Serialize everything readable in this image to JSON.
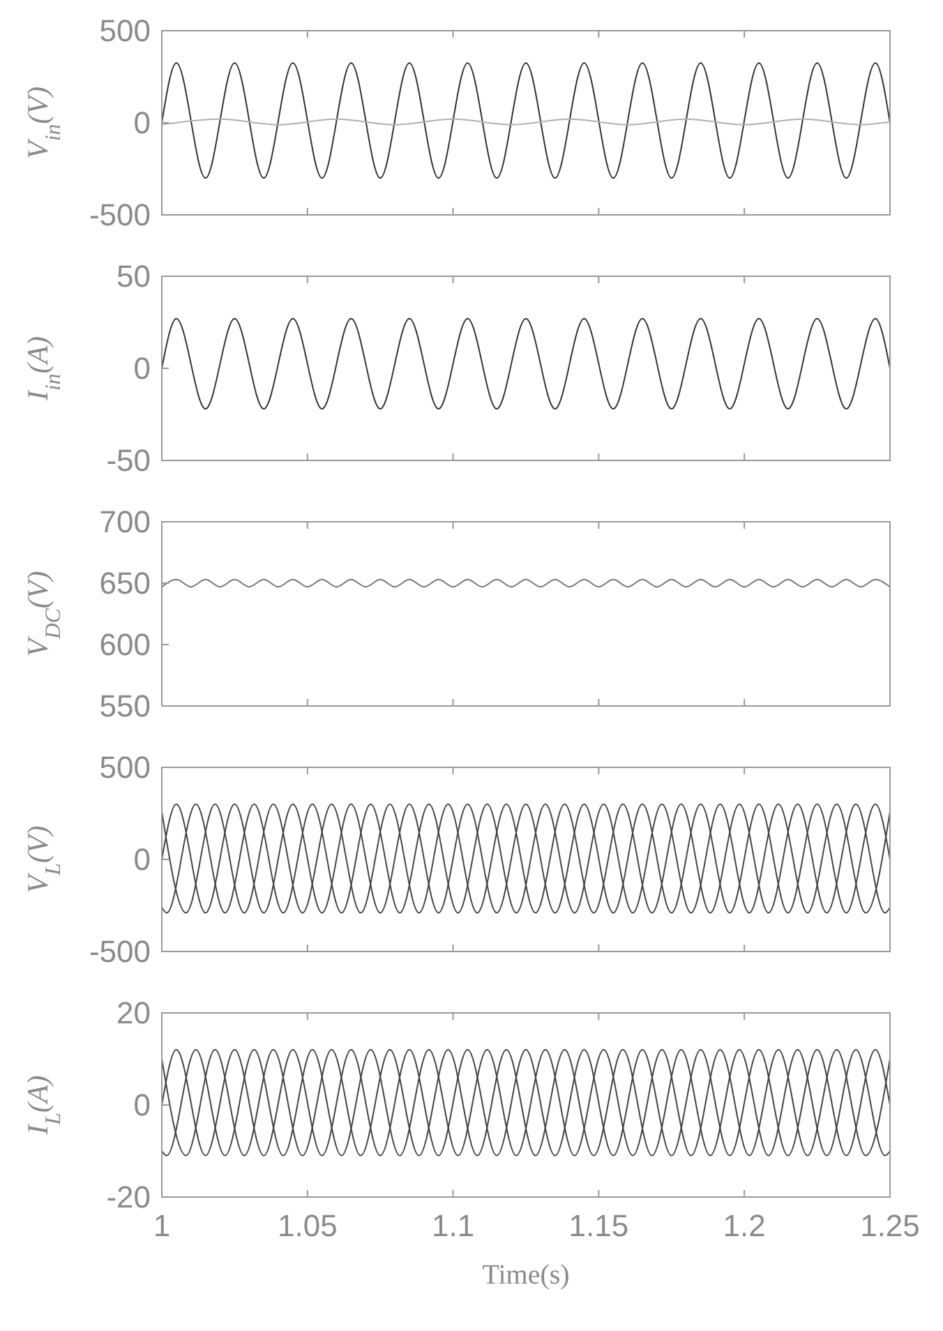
{
  "chart_data": [
    {
      "type": "line",
      "ylabel": "V$_{in}$(V)",
      "xlim": [
        1,
        1.25
      ],
      "xticks": [
        1,
        1.05,
        1.1,
        1.15,
        1.2,
        1.25
      ],
      "ylim": [
        -500,
        500
      ],
      "yticks": [
        -500,
        0,
        500
      ],
      "tick_labels": "y",
      "series": [
        {
          "color": "#333333",
          "x": [
            1,
            1.005,
            1.015,
            1.025,
            1.035,
            1.045,
            1.055,
            1.065,
            1.075,
            1.085,
            1.095,
            1.105,
            1.115,
            1.125,
            1.135,
            1.145,
            1.155,
            1.165,
            1.175,
            1.185,
            1.195,
            1.205,
            1.215,
            1.225,
            1.235,
            1.245,
            1.25
          ],
          "values": [
            0,
            325,
            -300,
            325,
            -300,
            325,
            -300,
            325,
            -300,
            325,
            -300,
            325,
            -300,
            325,
            -300,
            325,
            -300,
            325,
            -300,
            325,
            -300,
            325,
            -300,
            325,
            -300,
            325,
            0
          ]
        },
        {
          "color": "#b0b0b0",
          "x": [
            1,
            1.02,
            1.04,
            1.06,
            1.08,
            1.1,
            1.12,
            1.14,
            1.16,
            1.18,
            1.2,
            1.22,
            1.24,
            1.25
          ],
          "values": [
            -10,
            20,
            -10,
            20,
            -10,
            20,
            -10,
            20,
            -10,
            20,
            -10,
            20,
            -10,
            5
          ]
        }
      ]
    },
    {
      "type": "line",
      "ylabel": "I$_{in}$(A)",
      "xlim": [
        1,
        1.25
      ],
      "xticks": [
        1,
        1.05,
        1.1,
        1.15,
        1.2,
        1.25
      ],
      "ylim": [
        -50,
        50
      ],
      "yticks": [
        -50,
        0,
        50
      ],
      "tick_labels": "y",
      "series": [
        {
          "color": "#333333",
          "x": [
            1,
            1.005,
            1.015,
            1.025,
            1.035,
            1.045,
            1.055,
            1.065,
            1.075,
            1.085,
            1.095,
            1.105,
            1.115,
            1.125,
            1.135,
            1.145,
            1.155,
            1.165,
            1.175,
            1.185,
            1.195,
            1.205,
            1.215,
            1.225,
            1.235,
            1.245,
            1.25
          ],
          "values": [
            0,
            27,
            -22,
            27,
            -22,
            27,
            -22,
            27,
            -22,
            27,
            -22,
            27,
            -22,
            27,
            -22,
            27,
            -22,
            27,
            -22,
            27,
            -22,
            27,
            -22,
            27,
            -22,
            27,
            0
          ]
        }
      ]
    },
    {
      "type": "line",
      "ylabel": "V$_{DC}$(V)",
      "xlim": [
        1,
        1.25
      ],
      "xticks": [
        1,
        1.05,
        1.1,
        1.15,
        1.2,
        1.25
      ],
      "ylim": [
        550,
        700
      ],
      "yticks": [
        550,
        600,
        650,
        700
      ],
      "tick_labels": "y",
      "series": [
        {
          "color": "#777777",
          "x": [
            1,
            1.005,
            1.01,
            1.015,
            1.02,
            1.025,
            1.03,
            1.035,
            1.04,
            1.045,
            1.05,
            1.055,
            1.06,
            1.065,
            1.07,
            1.075,
            1.08,
            1.085,
            1.09,
            1.095,
            1.1,
            1.105,
            1.11,
            1.115,
            1.12,
            1.125,
            1.13,
            1.135,
            1.14,
            1.145,
            1.15,
            1.155,
            1.16,
            1.165,
            1.17,
            1.175,
            1.18,
            1.185,
            1.19,
            1.195,
            1.2,
            1.205,
            1.21,
            1.215,
            1.22,
            1.225,
            1.23,
            1.235,
            1.24,
            1.245,
            1.25
          ],
          "values": [
            647,
            653,
            647,
            653,
            647,
            653,
            647,
            653,
            647,
            653,
            647,
            653,
            647,
            653,
            647,
            653,
            647,
            653,
            647,
            653,
            647,
            653,
            647,
            653,
            647,
            653,
            647,
            653,
            647,
            653,
            647,
            653,
            647,
            653,
            647,
            653,
            647,
            653,
            647,
            653,
            647,
            653,
            647,
            653,
            647,
            653,
            647,
            653,
            647,
            653,
            647
          ]
        }
      ]
    },
    {
      "type": "line",
      "ylabel": "V$_{L}$(V)",
      "xlim": [
        1,
        1.25
      ],
      "xticks": [
        1,
        1.05,
        1.1,
        1.15,
        1.2,
        1.25
      ],
      "ylim": [
        -500,
        500
      ],
      "yticks": [
        -500,
        0,
        500
      ],
      "tick_labels": "y",
      "series": [
        {
          "color": "#444444",
          "x": [
            1,
            1.005,
            1.015,
            1.025,
            1.035,
            1.045,
            1.055,
            1.065,
            1.075,
            1.085,
            1.095,
            1.105,
            1.115,
            1.125,
            1.135,
            1.145,
            1.155,
            1.165,
            1.175,
            1.185,
            1.195,
            1.205,
            1.215,
            1.225,
            1.235,
            1.245,
            1.25
          ],
          "values": [
            0,
            300,
            -290,
            300,
            -290,
            300,
            -290,
            300,
            -290,
            300,
            -290,
            300,
            -290,
            300,
            -290,
            300,
            -290,
            300,
            -290,
            300,
            -290,
            300,
            -290,
            300,
            -290,
            300,
            0
          ]
        },
        {
          "color": "#444444",
          "x": [
            1,
            1.0017,
            1.0117,
            1.0217,
            1.0317,
            1.0417,
            1.0517,
            1.0617,
            1.0717,
            1.0817,
            1.0917,
            1.1017,
            1.1117,
            1.1217,
            1.1317,
            1.1417,
            1.1517,
            1.1617,
            1.1717,
            1.1817,
            1.1917,
            1.2017,
            1.2117,
            1.2217,
            1.2317,
            1.2417,
            1.25
          ],
          "values": [
            -260,
            -290,
            300,
            -290,
            300,
            -290,
            300,
            -290,
            300,
            -290,
            300,
            -290,
            300,
            -290,
            300,
            -290,
            300,
            -290,
            300,
            -290,
            300,
            -290,
            300,
            -290,
            300,
            -290,
            260
          ]
        },
        {
          "color": "#444444",
          "x": [
            1,
            1.0083,
            1.0183,
            1.0283,
            1.0383,
            1.0483,
            1.0583,
            1.0683,
            1.0783,
            1.0883,
            1.0983,
            1.1083,
            1.1183,
            1.1283,
            1.1383,
            1.1483,
            1.1583,
            1.1683,
            1.1783,
            1.1883,
            1.1983,
            1.2083,
            1.2183,
            1.2283,
            1.2383,
            1.2483,
            1.25
          ],
          "values": [
            260,
            -290,
            300,
            -290,
            300,
            -290,
            300,
            -290,
            300,
            -290,
            300,
            -290,
            300,
            -290,
            300,
            -290,
            300,
            -290,
            300,
            -290,
            300,
            -290,
            300,
            -290,
            300,
            -290,
            -260
          ]
        }
      ]
    },
    {
      "type": "line",
      "ylabel": "I$_{L}$(A)",
      "xlabel": "Time(s)",
      "xlim": [
        1,
        1.25
      ],
      "xticks": [
        1,
        1.05,
        1.1,
        1.15,
        1.2,
        1.25
      ],
      "ylim": [
        -20,
        20
      ],
      "yticks": [
        -20,
        0,
        20
      ],
      "series": [
        {
          "color": "#444444",
          "x": [
            1,
            1.005,
            1.015,
            1.025,
            1.035,
            1.045,
            1.055,
            1.065,
            1.075,
            1.085,
            1.095,
            1.105,
            1.115,
            1.125,
            1.135,
            1.145,
            1.155,
            1.165,
            1.175,
            1.185,
            1.195,
            1.205,
            1.215,
            1.225,
            1.235,
            1.245,
            1.25
          ],
          "values": [
            0,
            12,
            -11,
            12,
            -11,
            12,
            -11,
            12,
            -11,
            12,
            -11,
            12,
            -11,
            12,
            -11,
            12,
            -11,
            12,
            -11,
            12,
            -11,
            12,
            -11,
            12,
            -11,
            12,
            0
          ]
        },
        {
          "color": "#444444",
          "x": [
            1,
            1.0017,
            1.0117,
            1.0217,
            1.0317,
            1.0417,
            1.0517,
            1.0617,
            1.0717,
            1.0817,
            1.0917,
            1.1017,
            1.1117,
            1.1217,
            1.1317,
            1.1417,
            1.1517,
            1.1617,
            1.1717,
            1.1817,
            1.1917,
            1.2017,
            1.2117,
            1.2217,
            1.2317,
            1.2417,
            1.25
          ],
          "values": [
            -10,
            -11,
            12,
            -11,
            12,
            -11,
            12,
            -11,
            12,
            -11,
            12,
            -11,
            12,
            -11,
            12,
            -11,
            12,
            -11,
            12,
            -11,
            12,
            -11,
            12,
            -11,
            12,
            -11,
            10
          ]
        },
        {
          "color": "#444444",
          "x": [
            1,
            1.0083,
            1.0183,
            1.0283,
            1.0383,
            1.0483,
            1.0583,
            1.0683,
            1.0783,
            1.0883,
            1.0983,
            1.1083,
            1.1183,
            1.1283,
            1.1383,
            1.1483,
            1.1583,
            1.1683,
            1.1783,
            1.1883,
            1.1983,
            1.2083,
            1.2183,
            1.2283,
            1.2383,
            1.2483,
            1.25
          ],
          "values": [
            10,
            -11,
            12,
            -11,
            12,
            -11,
            12,
            -11,
            12,
            -11,
            12,
            -11,
            12,
            -11,
            12,
            -11,
            12,
            -11,
            12,
            -11,
            12,
            -11,
            12,
            -11,
            12,
            -11,
            -10
          ]
        }
      ]
    }
  ]
}
